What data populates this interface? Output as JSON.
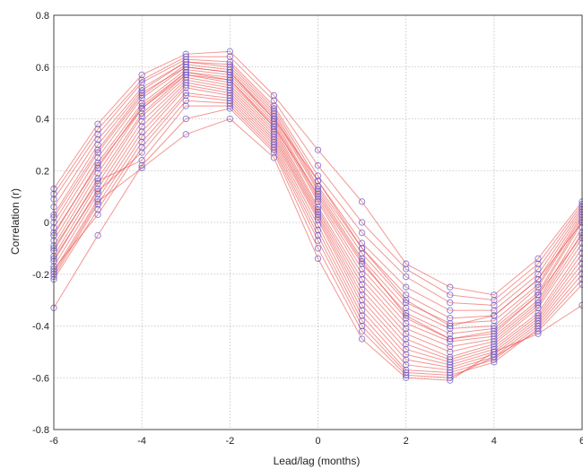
{
  "chart_data": {
    "type": "line",
    "title": "",
    "xlabel": "Lead/lag (months)",
    "ylabel": "Correlation (r)",
    "xlim": [
      -6,
      6
    ],
    "ylim": [
      -0.8,
      0.8
    ],
    "xticks": [
      -6,
      -4,
      -2,
      0,
      2,
      4,
      6
    ],
    "yticks": [
      -0.8,
      -0.6,
      -0.4,
      -0.2,
      0,
      0.2,
      0.4,
      0.6,
      0.8
    ],
    "xtick_labels": [
      "-6",
      "-4",
      "-2",
      "0",
      "2",
      "4",
      "6"
    ],
    "ytick_labels": [
      "-0.8",
      "-0.6",
      "-0.4",
      "-0.2",
      "0",
      "0.2",
      "0.4",
      "0.6",
      "0.8"
    ],
    "grid": true,
    "line_color": "#e8413c",
    "marker_color": "#6a5acd",
    "x": [
      -6,
      -5,
      -4,
      -3,
      -2,
      -1,
      0,
      1,
      2,
      3,
      4,
      5,
      6
    ],
    "series": [
      {
        "values": [
          0.13,
          0.38,
          0.57,
          0.65,
          0.66,
          0.49,
          0.28,
          0.08,
          -0.16,
          -0.25,
          -0.28,
          -0.14,
          0.08
        ]
      },
      {
        "values": [
          0.11,
          0.36,
          0.55,
          0.64,
          0.64,
          0.47,
          0.22,
          0.0,
          -0.18,
          -0.28,
          -0.3,
          -0.16,
          0.07
        ]
      },
      {
        "values": [
          0.09,
          0.34,
          0.54,
          0.63,
          0.62,
          0.45,
          0.18,
          -0.04,
          -0.21,
          -0.31,
          -0.32,
          -0.18,
          0.06
        ]
      },
      {
        "values": [
          0.06,
          0.32,
          0.52,
          0.62,
          0.61,
          0.44,
          0.16,
          -0.08,
          -0.25,
          -0.34,
          -0.34,
          -0.2,
          0.05
        ]
      },
      {
        "values": [
          0.03,
          0.3,
          0.51,
          0.62,
          0.6,
          0.43,
          0.14,
          -0.1,
          -0.28,
          -0.37,
          -0.36,
          -0.22,
          0.04
        ]
      },
      {
        "values": [
          0.0,
          0.27,
          0.49,
          0.61,
          0.59,
          0.42,
          0.13,
          -0.12,
          -0.31,
          -0.39,
          -0.38,
          -0.24,
          0.03
        ]
      },
      {
        "values": [
          -0.02,
          0.25,
          0.48,
          0.6,
          0.58,
          0.41,
          0.12,
          -0.14,
          -0.33,
          -0.41,
          -0.4,
          -0.25,
          0.02
        ]
      },
      {
        "values": [
          -0.05,
          0.23,
          0.46,
          0.59,
          0.57,
          0.4,
          0.1,
          -0.16,
          -0.35,
          -0.43,
          -0.41,
          -0.27,
          0.01
        ]
      },
      {
        "values": [
          -0.07,
          0.21,
          0.45,
          0.58,
          0.56,
          0.39,
          0.09,
          -0.18,
          -0.37,
          -0.45,
          -0.43,
          -0.28,
          0.0
        ]
      },
      {
        "values": [
          -0.09,
          0.19,
          0.44,
          0.58,
          0.55,
          0.38,
          0.08,
          -0.2,
          -0.39,
          -0.46,
          -0.44,
          -0.3,
          -0.02
        ]
      },
      {
        "values": [
          -0.11,
          0.17,
          0.42,
          0.57,
          0.54,
          0.37,
          0.06,
          -0.22,
          -0.41,
          -0.48,
          -0.45,
          -0.31,
          -0.04
        ]
      },
      {
        "values": [
          -0.13,
          0.15,
          0.41,
          0.56,
          0.53,
          0.36,
          0.05,
          -0.24,
          -0.43,
          -0.5,
          -0.46,
          -0.32,
          -0.06
        ]
      },
      {
        "values": [
          -0.15,
          0.13,
          0.39,
          0.55,
          0.52,
          0.35,
          0.04,
          -0.26,
          -0.45,
          -0.52,
          -0.47,
          -0.33,
          -0.08
        ]
      },
      {
        "values": [
          -0.17,
          0.11,
          0.37,
          0.54,
          0.51,
          0.34,
          0.03,
          -0.28,
          -0.47,
          -0.53,
          -0.48,
          -0.35,
          -0.1
        ]
      },
      {
        "values": [
          -0.19,
          0.09,
          0.35,
          0.53,
          0.5,
          0.33,
          0.02,
          -0.3,
          -0.49,
          -0.54,
          -0.49,
          -0.36,
          -0.12
        ]
      },
      {
        "values": [
          -0.21,
          0.07,
          0.33,
          0.52,
          0.49,
          0.32,
          0.01,
          -0.32,
          -0.51,
          -0.55,
          -0.5,
          -0.37,
          -0.14
        ]
      },
      {
        "values": [
          -0.22,
          0.05,
          0.31,
          0.5,
          0.48,
          0.31,
          -0.01,
          -0.34,
          -0.53,
          -0.56,
          -0.51,
          -0.38,
          -0.16
        ]
      },
      {
        "values": [
          -0.18,
          0.03,
          0.29,
          0.49,
          0.47,
          0.3,
          -0.03,
          -0.36,
          -0.55,
          -0.57,
          -0.52,
          -0.39,
          -0.18
        ]
      },
      {
        "values": [
          -0.14,
          0.12,
          0.27,
          0.47,
          0.46,
          0.29,
          -0.05,
          -0.38,
          -0.57,
          -0.58,
          -0.53,
          -0.4,
          -0.2
        ]
      },
      {
        "values": [
          -0.1,
          0.16,
          0.24,
          0.45,
          0.45,
          0.28,
          -0.07,
          -0.4,
          -0.58,
          -0.59,
          -0.54,
          -0.41,
          -0.22
        ]
      },
      {
        "values": [
          -0.33,
          -0.05,
          0.22,
          0.4,
          0.44,
          0.27,
          -0.1,
          -0.42,
          -0.59,
          -0.6,
          -0.52,
          -0.42,
          -0.24
        ]
      },
      {
        "values": [
          -0.2,
          0.08,
          0.21,
          0.34,
          0.4,
          0.25,
          -0.14,
          -0.45,
          -0.6,
          -0.61,
          -0.5,
          -0.43,
          -0.32
        ]
      },
      {
        "values": [
          0.02,
          0.28,
          0.5,
          0.6,
          0.58,
          0.4,
          0.16,
          -0.1,
          -0.3,
          -0.4,
          -0.36,
          -0.22,
          0.0
        ]
      },
      {
        "values": [
          -0.04,
          0.22,
          0.44,
          0.57,
          0.55,
          0.37,
          0.11,
          -0.15,
          -0.36,
          -0.45,
          -0.42,
          -0.28,
          -0.05
        ]
      }
    ]
  }
}
